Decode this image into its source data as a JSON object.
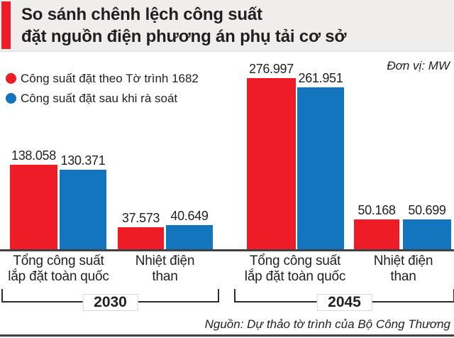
{
  "header": {
    "title": "So sánh chênh lệch công suất\nđặt nguồn điện phương án phụ tải cơ sở",
    "accent_color": "#ee1c26",
    "band_background": "#f0eeed",
    "text_color": "#231f20"
  },
  "chart_data": {
    "type": "bar",
    "title": "So sánh chênh lệch công suất đặt nguồn điện phương án phụ tải cơ sở",
    "unit_label": "Đơn vị: MW",
    "unit": "MW",
    "legend_position": "top-left",
    "value_axis": "hidden",
    "ylim": [
      0,
      276997
    ],
    "series": [
      {
        "name": "Công suất đặt theo Tờ trình 1682",
        "color": "#ee1c26"
      },
      {
        "name": "Công suất đặt sau khi rà soát",
        "color": "#1375bd"
      }
    ],
    "groups": [
      {
        "year": "2030",
        "category": "Tổng công suất\nlắp đặt toàn quốc",
        "values": [
          138058,
          130371
        ],
        "labels": [
          "138.058",
          "130.371"
        ]
      },
      {
        "year": "2030",
        "category": "Nhiệt điện\nthan",
        "values": [
          37573,
          40649
        ],
        "labels": [
          "37.573",
          "40.649"
        ]
      },
      {
        "year": "2045",
        "category": "Tổng công suất\nlắp đặt toàn quốc",
        "values": [
          276997,
          261951
        ],
        "labels": [
          "276.997",
          "261.951"
        ]
      },
      {
        "year": "2045",
        "category": "Nhiệt điện\nthan",
        "values": [
          50168,
          50699
        ],
        "labels": [
          "50.168",
          "50.699"
        ]
      }
    ],
    "year_brackets": [
      "2030",
      "2045"
    ]
  },
  "footer": {
    "source": "Nguồn: Dự thảo tờ trình của Bộ Công Thương"
  }
}
